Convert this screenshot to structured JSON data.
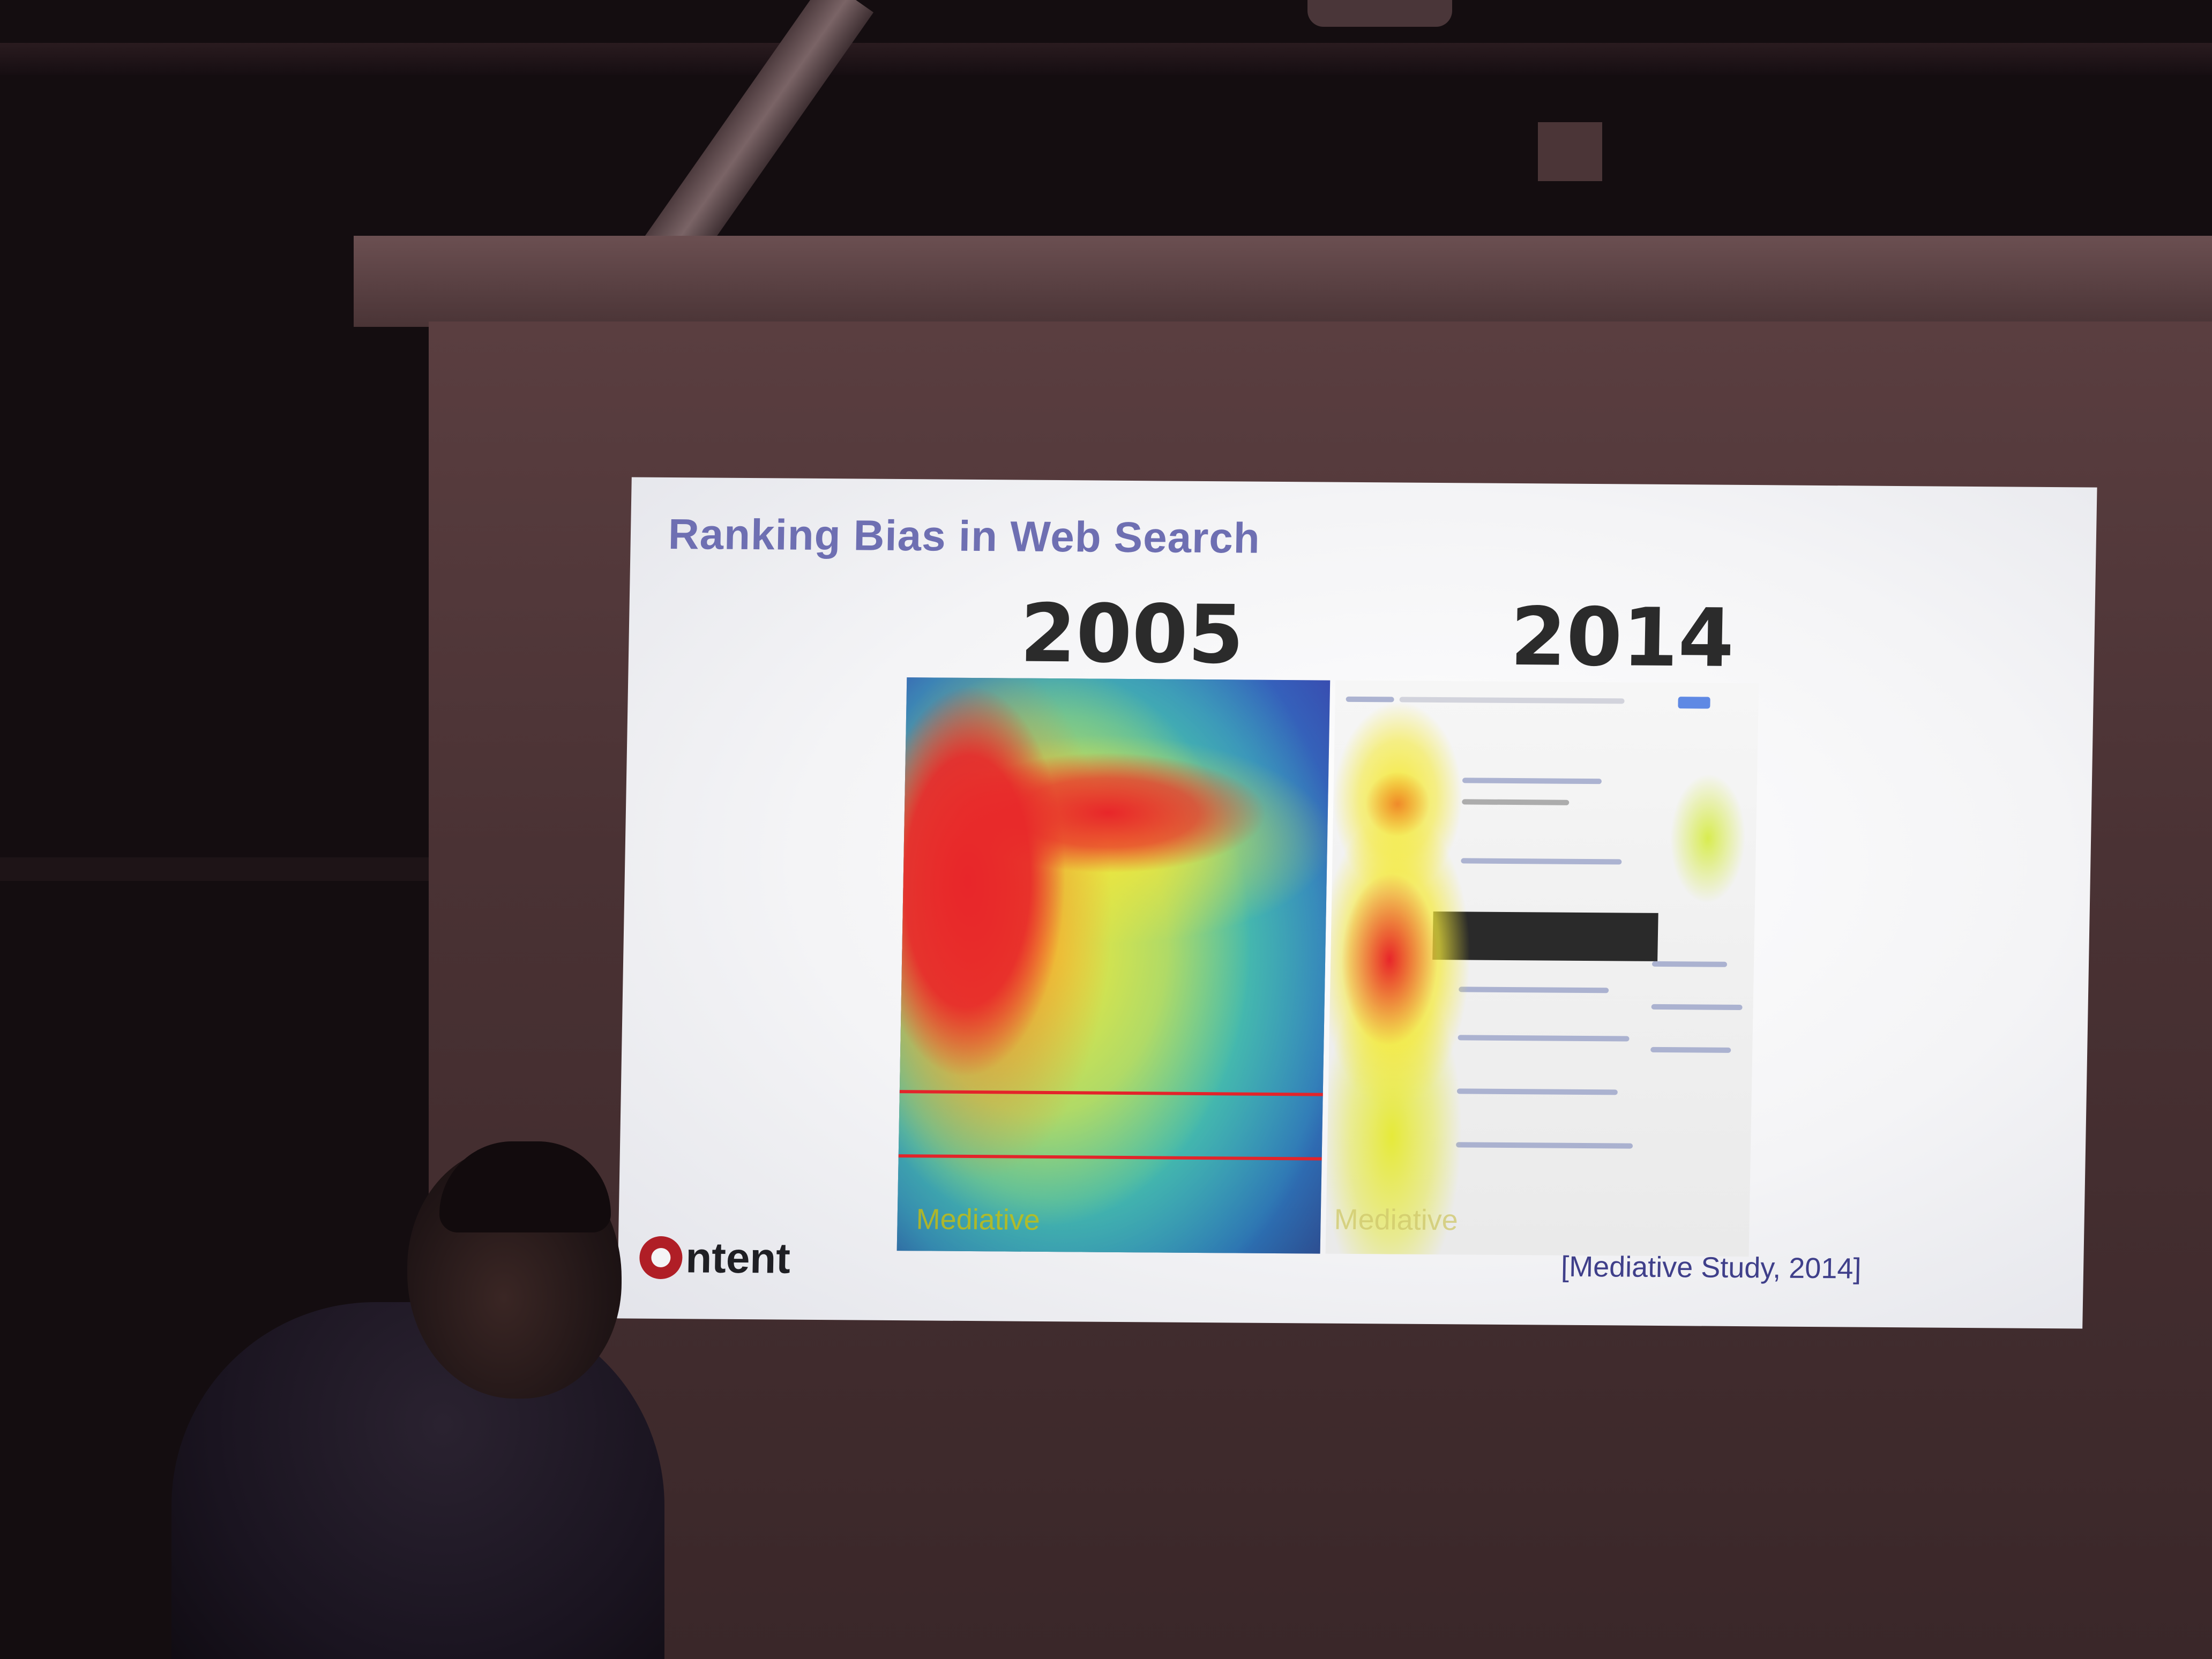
{
  "slide": {
    "title": "Ranking Bias in Web Search",
    "year_left": "2005",
    "year_right": "2014",
    "heatmap_left_watermark": "Mediative",
    "heatmap_right_watermark": "Mediative",
    "logo_text": "ntent",
    "citation": "[Mediative Study, 2014]"
  },
  "colors": {
    "title": "#6e6fb2",
    "heat_red": "#e8262a",
    "heat_yellow": "#f5e83a",
    "heat_blue": "#3b3fa8",
    "logo_red": "#b01e26"
  }
}
